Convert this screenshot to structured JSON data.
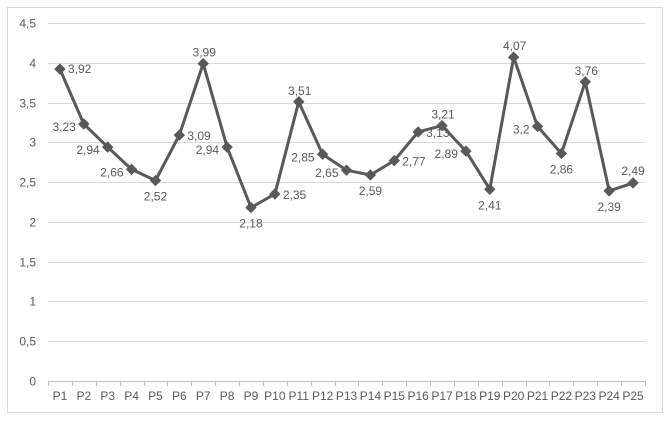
{
  "chart_data": {
    "type": "line",
    "categories": [
      "P1",
      "P2",
      "P3",
      "P4",
      "P5",
      "P6",
      "P7",
      "P8",
      "P9",
      "P10",
      "P11",
      "P12",
      "P13",
      "P14",
      "P15",
      "P16",
      "P17",
      "P18",
      "P19",
      "P20",
      "P21",
      "P22",
      "P23",
      "P24",
      "P25"
    ],
    "series": [
      {
        "values": [
          3.92,
          3.23,
          2.94,
          2.66,
          2.52,
          3.09,
          3.99,
          2.94,
          2.18,
          2.35,
          3.51,
          2.85,
          2.65,
          2.59,
          2.77,
          3.13,
          3.21,
          2.89,
          2.41,
          4.07,
          3.2,
          2.86,
          3.76,
          2.39,
          2.49
        ],
        "data_labels": [
          "3,92",
          "3,23",
          "2,94",
          "2,66",
          "2,52",
          "3,09",
          "3,99",
          "2,94",
          "2,18",
          "2,35",
          "3,51",
          "2,85",
          "2,65",
          "2,59",
          "2,77",
          "3,13",
          "3,21",
          "2,89",
          "2,41",
          "4,07",
          "3,2",
          "2,86",
          "3,76",
          "2,39",
          "2,49"
        ]
      }
    ],
    "ylim": [
      0,
      4.5
    ],
    "yticks": [
      0,
      0.5,
      1,
      1.5,
      2,
      2.5,
      3,
      3.5,
      4,
      4.5
    ],
    "ytick_labels": [
      "0",
      "0,5",
      "1",
      "1,5",
      "2",
      "2,5",
      "3",
      "3,5",
      "4",
      "4,5"
    ],
    "grid": true,
    "legend": "none",
    "colors": {
      "line": "#595959",
      "marker": "#595959",
      "grid": "#d9d9d9",
      "axis": "#bfbfbf"
    }
  }
}
